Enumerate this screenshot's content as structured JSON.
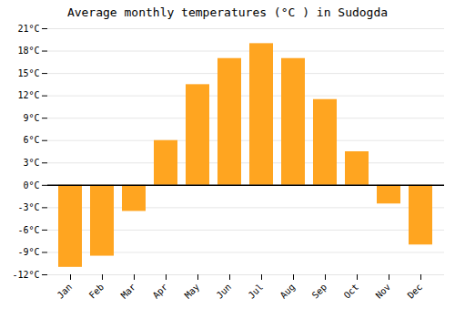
{
  "chart_data": {
    "type": "bar",
    "title": "Average monthly temperatures (°C ) in Sudogda",
    "categories": [
      "Jan",
      "Feb",
      "Mar",
      "Apr",
      "May",
      "Jun",
      "Jul",
      "Aug",
      "Sep",
      "Oct",
      "Nov",
      "Dec"
    ],
    "values": [
      -11,
      -9.5,
      -3.5,
      6,
      13.5,
      17,
      19,
      17,
      11.5,
      4.5,
      -2.5,
      -8
    ],
    "color": "#FFA520",
    "ylim": [
      -12,
      21
    ],
    "yticks": [
      {
        "value": -12,
        "label": "-12°C"
      },
      {
        "value": -9,
        "label": "-9°C"
      },
      {
        "value": -6,
        "label": "-6°C"
      },
      {
        "value": -3,
        "label": "-3°C"
      },
      {
        "value": 0,
        "label": "0°C"
      },
      {
        "value": 3,
        "label": "3°C"
      },
      {
        "value": 6,
        "label": "6°C"
      },
      {
        "value": 9,
        "label": "9°C"
      },
      {
        "value": 12,
        "label": "12°C"
      },
      {
        "value": 15,
        "label": "15°C"
      },
      {
        "value": 18,
        "label": "18°C"
      },
      {
        "value": 21,
        "label": "21°C"
      }
    ],
    "grid": true
  }
}
